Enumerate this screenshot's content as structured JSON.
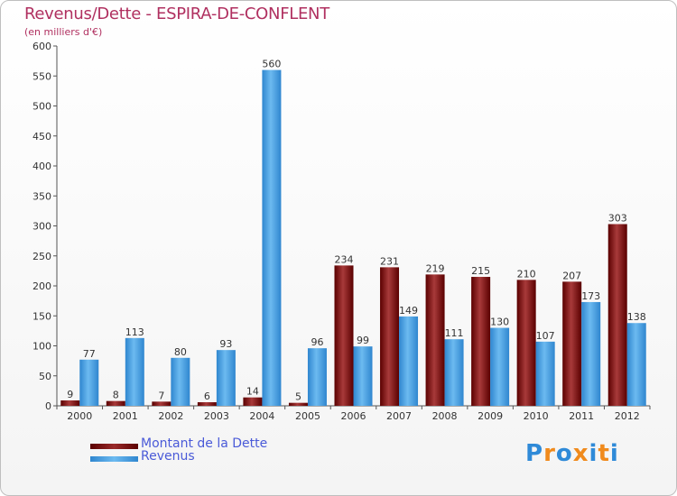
{
  "header": {
    "title": "Revenus/Dette - ESPIRA-DE-CONFLENT",
    "subtitle": "(en milliers d'€)"
  },
  "legend": [
    {
      "label": "Montant de la Dette",
      "color": "#6b0000"
    },
    {
      "label": "Revenus",
      "color": "#3a9be0"
    }
  ],
  "logo": {
    "text": "Proxiti",
    "colors": [
      "#2f8ad8",
      "#f08a1c",
      "#2f8ad8",
      "#f08a1c",
      "#2f8ad8",
      "#f08a1c",
      "#2f8ad8"
    ]
  },
  "chart_data": {
    "type": "bar",
    "title": "Revenus/Dette - ESPIRA-DE-CONFLENT",
    "subtitle": "(en milliers d'€)",
    "xlabel": "",
    "ylabel": "",
    "categories": [
      "2000",
      "2001",
      "2002",
      "2003",
      "2004",
      "2005",
      "2006",
      "2007",
      "2008",
      "2009",
      "2010",
      "2011",
      "2012"
    ],
    "series": [
      {
        "name": "Montant de la Dette",
        "color": "#7a1010",
        "values": [
          9,
          8,
          7,
          6,
          14,
          5,
          234,
          231,
          219,
          215,
          210,
          207,
          303
        ]
      },
      {
        "name": "Revenus",
        "color": "#3a9be0",
        "values": [
          77,
          113,
          80,
          93,
          560,
          96,
          99,
          149,
          111,
          130,
          107,
          173,
          138
        ]
      }
    ],
    "ylim": [
      0,
      600
    ],
    "yticks": [
      0,
      50,
      100,
      150,
      200,
      250,
      300,
      350,
      400,
      450,
      500,
      550,
      600
    ],
    "grid": false,
    "legend_position": "bottom-left"
  }
}
